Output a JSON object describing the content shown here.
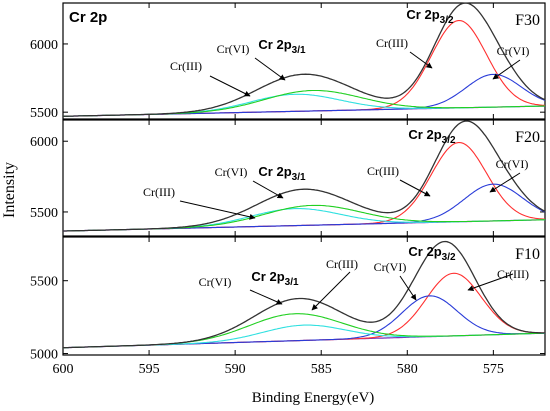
{
  "chart_data": {
    "type": "line",
    "figure_label": "Cr 2p",
    "xlabel": "Binding Energy(eV)",
    "ylabel": "Intensity",
    "xlim": [
      600,
      572
    ],
    "xticks": [
      600,
      595,
      590,
      585,
      580,
      575
    ],
    "colors": {
      "envelope": "#333333",
      "cr2p32_III": "#ff3030",
      "cr2p32_VI": "#2a3cd8",
      "cr2p12_III": "#31e0e0",
      "cr2p12_VI": "#22d022",
      "background": "#7a2fb8"
    },
    "panels": [
      {
        "sample": "F30",
        "ylim": [
          5450,
          6300
        ],
        "yticks": [
          5500,
          6000
        ],
        "baseline": [
          5470,
          5545
        ],
        "peaks": [
          {
            "component": "cr2p32_III",
            "center": 577.0,
            "height": 640,
            "width": 1.6
          },
          {
            "component": "cr2p32_VI",
            "center": 575.0,
            "height": 240,
            "width": 1.6
          },
          {
            "component": "cr2p12_III",
            "center": 586.5,
            "height": 125,
            "width": 2.6
          },
          {
            "component": "cr2p12_VI",
            "center": 585.5,
            "height": 150,
            "width": 2.8
          }
        ],
        "annotations": [
          {
            "text": "Cr 2p3/2",
            "bold": true
          },
          {
            "text": "Cr 2p3/1",
            "bold": true
          },
          {
            "text": "Cr(III)"
          },
          {
            "text": "Cr(VI)"
          },
          {
            "text": "Cr(III)"
          },
          {
            "text": "Cr(VI)"
          }
        ]
      },
      {
        "sample": "F20",
        "ylim": [
          5330,
          6150
        ],
        "yticks": [
          5500,
          6000
        ],
        "baseline": [
          5365,
          5445
        ],
        "peaks": [
          {
            "component": "cr2p32_III",
            "center": 577.0,
            "height": 560,
            "width": 1.6
          },
          {
            "component": "cr2p32_VI",
            "center": 575.0,
            "height": 260,
            "width": 1.7
          },
          {
            "component": "cr2p12_III",
            "center": 586.5,
            "height": 120,
            "width": 2.6
          },
          {
            "component": "cr2p12_VI",
            "center": 585.5,
            "height": 140,
            "width": 2.8
          }
        ],
        "annotations": [
          {
            "text": "Cr 2p3/2",
            "bold": true
          },
          {
            "text": "Cr 2p3/1",
            "bold": true
          },
          {
            "text": "Cr(III)"
          },
          {
            "text": "Cr(VI)"
          },
          {
            "text": "Cr(III)"
          },
          {
            "text": "Cr(VI)"
          }
        ]
      },
      {
        "sample": "F10",
        "ylim": [
          4990,
          5800
        ],
        "yticks": [
          5000,
          5500
        ],
        "baseline": [
          5040,
          5140
        ],
        "peaks": [
          {
            "component": "cr2p32_III",
            "center": 577.3,
            "height": 430,
            "width": 1.6
          },
          {
            "component": "cr2p32_VI",
            "center": 578.7,
            "height": 280,
            "width": 1.6
          },
          {
            "component": "cr2p12_III",
            "center": 586.0,
            "height": 105,
            "width": 2.4
          },
          {
            "component": "cr2p12_VI",
            "center": 586.5,
            "height": 185,
            "width": 2.7
          }
        ],
        "annotations": [
          {
            "text": "Cr 2p3/2",
            "bold": true
          },
          {
            "text": "Cr 2p3/1",
            "bold": true
          },
          {
            "text": "Cr(VI)"
          },
          {
            "text": "Cr(III)"
          },
          {
            "text": "Cr(VI)"
          },
          {
            "text": "Cr(III)"
          }
        ]
      }
    ]
  }
}
